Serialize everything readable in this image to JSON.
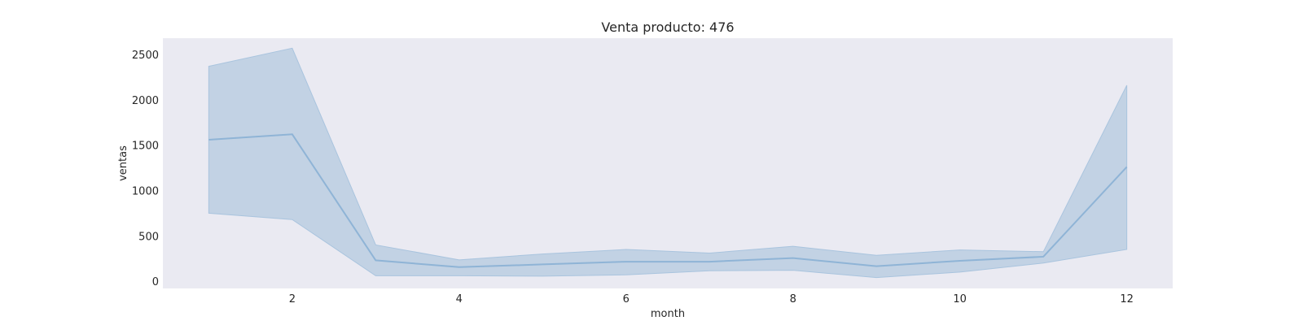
{
  "chart_data": {
    "type": "line",
    "title": "Venta producto: 476",
    "xlabel": "month",
    "ylabel": "ventas",
    "xlim": [
      0.45,
      12.55
    ],
    "ylim": [
      -80,
      2680
    ],
    "xticks": [
      2,
      4,
      6,
      8,
      10,
      12
    ],
    "yticks": [
      0,
      500,
      1000,
      1500,
      2000,
      2500
    ],
    "grid": false,
    "legend": "none",
    "colors": {
      "plot_background": "#eaeaf2",
      "line": "#8fb4d6",
      "band_fill": "#a7c1db",
      "band_stroke": "#a9c4de"
    },
    "series": [
      {
        "x": [
          1,
          2,
          3,
          4,
          5,
          6,
          7,
          8,
          9,
          10,
          11,
          12
        ],
        "values": [
          1560,
          1620,
          230,
          155,
          185,
          215,
          215,
          255,
          165,
          225,
          270,
          1260
        ],
        "ci_lower": [
          750,
          680,
          60,
          60,
          55,
          70,
          115,
          120,
          40,
          100,
          200,
          350
        ],
        "ci_upper": [
          2370,
          2570,
          400,
          235,
          300,
          350,
          310,
          385,
          285,
          345,
          325,
          2160
        ]
      }
    ]
  }
}
